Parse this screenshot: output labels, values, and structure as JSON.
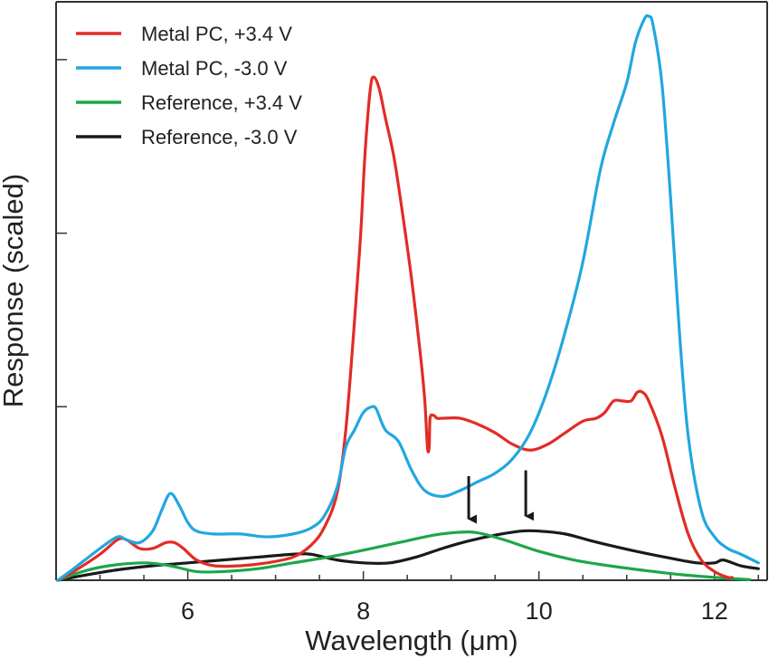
{
  "chart_data": {
    "type": "line",
    "title": "",
    "xlabel": "Wavelength (μm)",
    "ylabel": "Response (scaled)",
    "xlim": [
      4.5,
      12.6
    ],
    "ylim": [
      0,
      1.0
    ],
    "x_ticks": [
      6,
      8,
      10,
      12
    ],
    "x_tick_labels": [
      "6",
      "8",
      "10",
      "12"
    ],
    "y_ticks": [
      0.3,
      0.6,
      0.9
    ],
    "grid": false,
    "legend_position": "top-left",
    "series": [
      {
        "name": "Metal PC, +3.4 V",
        "color": "#e32b25",
        "points": [
          [
            4.52,
            0.0
          ],
          [
            4.7,
            0.015
          ],
          [
            5.0,
            0.045
          ],
          [
            5.2,
            0.07
          ],
          [
            5.3,
            0.07
          ],
          [
            5.45,
            0.055
          ],
          [
            5.6,
            0.055
          ],
          [
            5.75,
            0.065
          ],
          [
            5.85,
            0.065
          ],
          [
            5.95,
            0.055
          ],
          [
            6.1,
            0.035
          ],
          [
            6.3,
            0.025
          ],
          [
            6.6,
            0.025
          ],
          [
            6.9,
            0.03
          ],
          [
            7.2,
            0.04
          ],
          [
            7.4,
            0.06
          ],
          [
            7.55,
            0.09
          ],
          [
            7.7,
            0.15
          ],
          [
            7.8,
            0.26
          ],
          [
            7.9,
            0.45
          ],
          [
            7.97,
            0.6
          ],
          [
            8.02,
            0.74
          ],
          [
            8.08,
            0.85
          ],
          [
            8.12,
            0.87
          ],
          [
            8.18,
            0.85
          ],
          [
            8.25,
            0.8
          ],
          [
            8.35,
            0.73
          ],
          [
            8.45,
            0.63
          ],
          [
            8.55,
            0.52
          ],
          [
            8.65,
            0.39
          ],
          [
            8.7,
            0.31
          ],
          [
            8.73,
            0.23
          ],
          [
            8.75,
            0.23
          ],
          [
            8.76,
            0.28
          ],
          [
            8.8,
            0.285
          ],
          [
            8.84,
            0.28
          ],
          [
            8.9,
            0.28
          ],
          [
            9.1,
            0.28
          ],
          [
            9.3,
            0.27
          ],
          [
            9.5,
            0.255
          ],
          [
            9.7,
            0.235
          ],
          [
            9.9,
            0.225
          ],
          [
            10.1,
            0.235
          ],
          [
            10.3,
            0.255
          ],
          [
            10.5,
            0.275
          ],
          [
            10.65,
            0.28
          ],
          [
            10.75,
            0.29
          ],
          [
            10.85,
            0.31
          ],
          [
            10.95,
            0.31
          ],
          [
            11.05,
            0.31
          ],
          [
            11.12,
            0.325
          ],
          [
            11.18,
            0.325
          ],
          [
            11.25,
            0.31
          ],
          [
            11.4,
            0.25
          ],
          [
            11.55,
            0.16
          ],
          [
            11.7,
            0.08
          ],
          [
            11.85,
            0.035
          ],
          [
            12.0,
            0.015
          ],
          [
            12.15,
            0.005
          ],
          [
            12.2,
            0.005
          ]
        ]
      },
      {
        "name": "Metal PC, -3.0 V",
        "color": "#21a7e0",
        "points": [
          [
            4.52,
            0.0
          ],
          [
            4.7,
            0.02
          ],
          [
            5.0,
            0.055
          ],
          [
            5.2,
            0.075
          ],
          [
            5.3,
            0.07
          ],
          [
            5.45,
            0.065
          ],
          [
            5.6,
            0.085
          ],
          [
            5.7,
            0.12
          ],
          [
            5.8,
            0.15
          ],
          [
            5.9,
            0.13
          ],
          [
            6.0,
            0.1
          ],
          [
            6.1,
            0.085
          ],
          [
            6.3,
            0.08
          ],
          [
            6.6,
            0.08
          ],
          [
            6.9,
            0.075
          ],
          [
            7.2,
            0.08
          ],
          [
            7.4,
            0.09
          ],
          [
            7.55,
            0.11
          ],
          [
            7.7,
            0.16
          ],
          [
            7.8,
            0.23
          ],
          [
            7.9,
            0.26
          ],
          [
            8.0,
            0.29
          ],
          [
            8.1,
            0.3
          ],
          [
            8.15,
            0.295
          ],
          [
            8.25,
            0.26
          ],
          [
            8.4,
            0.24
          ],
          [
            8.55,
            0.19
          ],
          [
            8.7,
            0.155
          ],
          [
            8.9,
            0.145
          ],
          [
            9.1,
            0.155
          ],
          [
            9.3,
            0.17
          ],
          [
            9.5,
            0.185
          ],
          [
            9.7,
            0.21
          ],
          [
            9.9,
            0.255
          ],
          [
            10.1,
            0.33
          ],
          [
            10.3,
            0.43
          ],
          [
            10.5,
            0.55
          ],
          [
            10.7,
            0.71
          ],
          [
            10.85,
            0.79
          ],
          [
            11.0,
            0.86
          ],
          [
            11.1,
            0.93
          ],
          [
            11.2,
            0.97
          ],
          [
            11.25,
            0.975
          ],
          [
            11.3,
            0.96
          ],
          [
            11.4,
            0.86
          ],
          [
            11.5,
            0.66
          ],
          [
            11.6,
            0.43
          ],
          [
            11.7,
            0.25
          ],
          [
            11.85,
            0.12
          ],
          [
            12.0,
            0.075
          ],
          [
            12.15,
            0.055
          ],
          [
            12.3,
            0.045
          ],
          [
            12.5,
            0.03
          ]
        ]
      },
      {
        "name": "Reference, +3.4 V",
        "color": "#1da648",
        "points": [
          [
            4.52,
            0.0
          ],
          [
            4.8,
            0.015
          ],
          [
            5.1,
            0.025
          ],
          [
            5.5,
            0.03
          ],
          [
            5.8,
            0.025
          ],
          [
            6.1,
            0.015
          ],
          [
            6.4,
            0.015
          ],
          [
            6.8,
            0.02
          ],
          [
            7.2,
            0.03
          ],
          [
            7.6,
            0.04
          ],
          [
            8.0,
            0.052
          ],
          [
            8.4,
            0.065
          ],
          [
            8.8,
            0.078
          ],
          [
            9.1,
            0.083
          ],
          [
            9.3,
            0.082
          ],
          [
            9.6,
            0.07
          ],
          [
            10.0,
            0.05
          ],
          [
            10.4,
            0.035
          ],
          [
            10.8,
            0.025
          ],
          [
            11.2,
            0.017
          ],
          [
            11.6,
            0.01
          ],
          [
            12.0,
            0.005
          ],
          [
            12.4,
            0.001
          ]
        ]
      },
      {
        "name": "Reference, -3.0 V",
        "color": "#1a1a1a",
        "points": [
          [
            4.52,
            0.0
          ],
          [
            4.8,
            0.008
          ],
          [
            5.2,
            0.018
          ],
          [
            5.6,
            0.025
          ],
          [
            6.0,
            0.03
          ],
          [
            6.4,
            0.035
          ],
          [
            6.8,
            0.04
          ],
          [
            7.2,
            0.045
          ],
          [
            7.4,
            0.045
          ],
          [
            7.7,
            0.035
          ],
          [
            8.0,
            0.03
          ],
          [
            8.3,
            0.03
          ],
          [
            8.6,
            0.04
          ],
          [
            8.9,
            0.055
          ],
          [
            9.2,
            0.068
          ],
          [
            9.5,
            0.078
          ],
          [
            9.8,
            0.085
          ],
          [
            10.0,
            0.085
          ],
          [
            10.3,
            0.08
          ],
          [
            10.6,
            0.068
          ],
          [
            10.9,
            0.057
          ],
          [
            11.2,
            0.047
          ],
          [
            11.5,
            0.038
          ],
          [
            11.8,
            0.03
          ],
          [
            12.0,
            0.03
          ],
          [
            12.1,
            0.035
          ],
          [
            12.3,
            0.025
          ],
          [
            12.5,
            0.02
          ]
        ]
      }
    ],
    "annotations": [
      {
        "type": "down-arrow",
        "x": 9.2,
        "y_from": 0.18,
        "y_to": 0.09
      },
      {
        "type": "down-arrow",
        "x": 9.85,
        "y_from": 0.19,
        "y_to": 0.095
      }
    ]
  }
}
